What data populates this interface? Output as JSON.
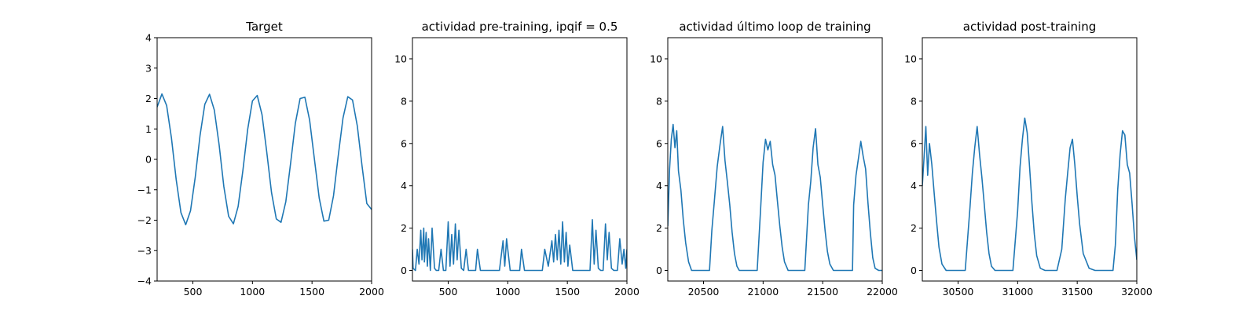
{
  "chart_data": [
    {
      "type": "line",
      "title": "Target",
      "xlim": [
        200,
        2000
      ],
      "ylim": [
        -4,
        4
      ],
      "xticks": [
        500,
        1000,
        1500,
        2000
      ],
      "yticks": [
        -4,
        -3,
        -2,
        -1,
        0,
        1,
        2,
        3,
        4
      ],
      "xtick_labels": [
        "500",
        "1000",
        "1500",
        "2000"
      ],
      "ytick_labels": [
        "−4",
        "−3",
        "−2",
        "−1",
        "0",
        "1",
        "2",
        "3",
        "4"
      ],
      "series": [
        {
          "color": "#1f77b4",
          "x": [
            200,
            240,
            280,
            320,
            360,
            400,
            440,
            480,
            520,
            560,
            600,
            640,
            680,
            720,
            760,
            800,
            840,
            880,
            920,
            960,
            1000,
            1040,
            1080,
            1120,
            1160,
            1200,
            1240,
            1280,
            1320,
            1360,
            1400,
            1440,
            1480,
            1520,
            1560,
            1600,
            1640,
            1680,
            1720,
            1760,
            1800,
            1840,
            1880,
            1920,
            1960,
            2000
          ],
          "y": [
            1.72,
            2.15,
            1.77,
            0.71,
            -0.67,
            -1.75,
            -2.15,
            -1.69,
            -0.59,
            0.78,
            1.81,
            2.14,
            1.62,
            0.48,
            -0.89,
            -1.87,
            -2.12,
            -1.55,
            -0.36,
            0.99,
            1.92,
            2.1,
            1.47,
            0.25,
            -1.09,
            -1.96,
            -2.07,
            -1.39,
            -0.13,
            1.18,
            2.0,
            2.04,
            1.29,
            0.01,
            -1.27,
            -2.03,
            -2.0,
            -1.2,
            0.11,
            1.36,
            2.06,
            1.95,
            1.1,
            -0.23,
            -1.45,
            -1.65
          ]
        }
      ]
    },
    {
      "type": "line",
      "title": "actividad pre-training, ipqif = 0.5",
      "xlim": [
        200,
        2000
      ],
      "ylim": [
        -0.5,
        11
      ],
      "xticks": [
        500,
        1000,
        1500,
        2000
      ],
      "yticks": [
        0,
        2,
        4,
        6,
        8,
        10
      ],
      "xtick_labels": [
        "500",
        "1000",
        "1500",
        "2000"
      ],
      "ytick_labels": [
        "0",
        "2",
        "4",
        "6",
        "8",
        "10"
      ],
      "series": [
        {
          "color": "#1f77b4",
          "x": [
            200,
            205,
            225,
            240,
            255,
            270,
            280,
            295,
            300,
            315,
            325,
            335,
            350,
            365,
            385,
            400,
            420,
            440,
            460,
            480,
            500,
            515,
            530,
            545,
            560,
            575,
            590,
            610,
            630,
            650,
            670,
            700,
            730,
            745,
            770,
            800,
            840,
            880,
            930,
            960,
            975,
            990,
            1020,
            1060,
            1100,
            1115,
            1140,
            1180,
            1220,
            1260,
            1290,
            1310,
            1340,
            1370,
            1385,
            1400,
            1415,
            1430,
            1445,
            1460,
            1475,
            1490,
            1505,
            1520,
            1545,
            1570,
            1610,
            1650,
            1690,
            1710,
            1725,
            1740,
            1760,
            1780,
            1800,
            1820,
            1835,
            1850,
            1870,
            1890,
            1920,
            1940,
            1960,
            1975,
            1990,
            2000
          ],
          "y": [
            1.0,
            0.1,
            0.0,
            1.0,
            0.3,
            1.9,
            0.5,
            2.0,
            0.4,
            1.8,
            0.2,
            1.5,
            0.0,
            2.0,
            0.1,
            0.0,
            0.0,
            1.0,
            0.0,
            0.0,
            2.3,
            0.2,
            1.7,
            0.3,
            2.2,
            0.5,
            1.9,
            0.1,
            0.0,
            1.0,
            0.0,
            0.0,
            0.0,
            1.0,
            0.0,
            0.0,
            0.0,
            0.0,
            0.0,
            1.4,
            0.2,
            1.5,
            0.0,
            0.0,
            0.0,
            1.0,
            0.0,
            0.0,
            0.0,
            0.0,
            0.0,
            1.0,
            0.2,
            1.4,
            0.4,
            1.7,
            0.5,
            1.9,
            0.3,
            2.3,
            0.4,
            1.8,
            0.2,
            1.2,
            0.0,
            0.0,
            0.0,
            0.0,
            0.0,
            2.4,
            0.3,
            1.9,
            0.1,
            0.0,
            0.0,
            2.2,
            0.5,
            1.8,
            0.1,
            0.0,
            0.0,
            1.5,
            0.3,
            1.0,
            0.1,
            1.0
          ]
        }
      ]
    },
    {
      "type": "line",
      "title": "actividad último loop de training",
      "xlim": [
        20200,
        22000
      ],
      "ylim": [
        -0.5,
        11
      ],
      "xticks": [
        20500,
        21000,
        21500,
        22000
      ],
      "yticks": [
        0,
        2,
        4,
        6,
        8,
        10
      ],
      "xtick_labels": [
        "20500",
        "21000",
        "21500",
        "22000"
      ],
      "ytick_labels": [
        "0",
        "2",
        "4",
        "6",
        "8",
        "10"
      ],
      "series": [
        {
          "color": "#1f77b4",
          "x": [
            20200,
            20215,
            20230,
            20245,
            20260,
            20275,
            20290,
            20310,
            20330,
            20350,
            20375,
            20400,
            20450,
            20500,
            20550,
            20570,
            20590,
            20615,
            20640,
            20660,
            20680,
            20700,
            20720,
            20740,
            20760,
            20780,
            20800,
            20820,
            20850,
            20900,
            20950,
            20980,
            21000,
            21020,
            21040,
            21060,
            21080,
            21100,
            21120,
            21140,
            21160,
            21180,
            21210,
            21250,
            21300,
            21350,
            21380,
            21400,
            21420,
            21440,
            21460,
            21480,
            21500,
            21520,
            21540,
            21560,
            21590,
            21650,
            21700,
            21750,
            21760,
            21780,
            21800,
            21820,
            21840,
            21860,
            21880,
            21900,
            21920,
            21940,
            21970,
            22000
          ],
          "y": [
            2.1,
            4.8,
            6.2,
            6.9,
            5.8,
            6.6,
            4.7,
            3.8,
            2.4,
            1.3,
            0.4,
            0.0,
            0.0,
            0.0,
            0.0,
            1.9,
            3.2,
            4.9,
            6.0,
            6.8,
            5.2,
            4.2,
            3.1,
            1.8,
            0.8,
            0.2,
            0.0,
            0.0,
            0.0,
            0.0,
            0.0,
            3.0,
            5.1,
            6.2,
            5.7,
            6.1,
            5.0,
            4.5,
            3.3,
            2.1,
            1.1,
            0.4,
            0.0,
            0.0,
            0.0,
            0.0,
            3.1,
            4.2,
            5.8,
            6.7,
            5.0,
            4.4,
            3.1,
            1.9,
            0.9,
            0.3,
            0.0,
            0.0,
            0.0,
            0.0,
            3.1,
            4.5,
            5.3,
            6.1,
            5.4,
            4.8,
            3.2,
            1.8,
            0.6,
            0.1,
            0.0,
            0.0
          ]
        }
      ]
    },
    {
      "type": "line",
      "title": "actividad post-training",
      "xlim": [
        30200,
        32000
      ],
      "ylim": [
        -0.5,
        11
      ],
      "xticks": [
        30500,
        31000,
        31500,
        32000
      ],
      "yticks": [
        0,
        2,
        4,
        6,
        8,
        10
      ],
      "xtick_labels": [
        "30500",
        "31000",
        "31500",
        "32000"
      ],
      "ytick_labels": [
        "0",
        "2",
        "4",
        "6",
        "8",
        "10"
      ],
      "series": [
        {
          "color": "#1f77b4",
          "x": [
            30200,
            30215,
            30230,
            30245,
            30260,
            30280,
            30300,
            30320,
            30340,
            30365,
            30400,
            30450,
            30500,
            30560,
            30600,
            30620,
            30640,
            30660,
            30680,
            30700,
            30720,
            30740,
            30760,
            30780,
            30810,
            30850,
            30900,
            30960,
            31000,
            31020,
            31040,
            31060,
            31080,
            31100,
            31120,
            31140,
            31160,
            31190,
            31230,
            31280,
            31330,
            31370,
            31400,
            31420,
            31440,
            31460,
            31480,
            31500,
            31520,
            31550,
            31600,
            31650,
            31700,
            31760,
            31800,
            31820,
            31840,
            31860,
            31880,
            31900,
            31920,
            31940,
            31960,
            31980,
            32000
          ],
          "y": [
            4.0,
            5.4,
            6.8,
            4.5,
            6.0,
            5.0,
            3.6,
            2.3,
            1.1,
            0.3,
            0.0,
            0.0,
            0.0,
            0.0,
            3.0,
            4.6,
            5.8,
            6.8,
            5.5,
            4.4,
            3.1,
            1.8,
            0.8,
            0.2,
            0.0,
            0.0,
            0.0,
            0.0,
            2.8,
            4.9,
            6.2,
            7.2,
            6.5,
            4.9,
            3.2,
            1.7,
            0.7,
            0.1,
            0.0,
            0.0,
            0.0,
            1.0,
            3.4,
            4.6,
            5.8,
            6.2,
            5.0,
            3.5,
            2.2,
            0.8,
            0.1,
            0.0,
            0.0,
            0.0,
            0.0,
            1.2,
            3.8,
            5.5,
            6.6,
            6.4,
            5.0,
            4.6,
            3.2,
            1.6,
            0.5
          ]
        }
      ]
    }
  ]
}
